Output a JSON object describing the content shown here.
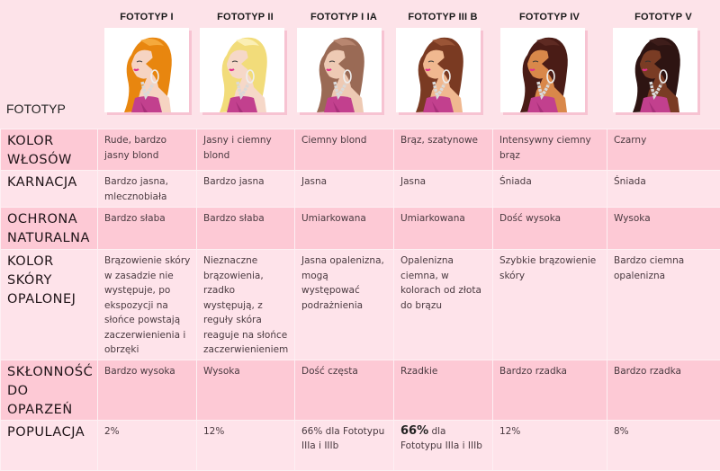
{
  "header": {
    "row_label": "FOTOTYP",
    "columns": [
      {
        "title": "FOTOTYP I",
        "hair_color": "#e8860f",
        "hair_hl": "#f5a93c",
        "skin_color": "#f6d4c2",
        "image": "woman-portrait-red-hair"
      },
      {
        "title": "FOTOTYP II",
        "hair_color": "#f2dc7a",
        "hair_hl": "#fbefb4",
        "skin_color": "#f6d8c8",
        "image": "woman-portrait-blonde-hair"
      },
      {
        "title": "FOTOTYP I IA",
        "hair_color": "#9a6a55",
        "hair_hl": "#b88670",
        "skin_color": "#eecab4",
        "image": "woman-portrait-dark-blonde-hair"
      },
      {
        "title": "FOTOTYP III B",
        "hair_color": "#7a3a22",
        "hair_hl": "#9a5436",
        "skin_color": "#f0b890",
        "image": "woman-portrait-brown-hair"
      },
      {
        "title": "FOTOTYP IV",
        "hair_color": "#4a1c16",
        "hair_hl": "#5e2a22",
        "skin_color": "#d9884a",
        "image": "woman-portrait-dark-brown-hair"
      },
      {
        "title": "FOTOTYP V",
        "hair_color": "#2e1412",
        "hair_hl": "#3e1d1a",
        "skin_color": "#7a3c24",
        "image": "woman-portrait-black-hair"
      }
    ]
  },
  "rows": [
    {
      "label": "KOLOR WŁOSÓW",
      "cells": [
        "Rude,  bardzo jasny blond",
        "Jasny i ciemny blond",
        "Ciemny blond",
        "Brąz, szatynowe",
        "Intensywny ciemny brąz",
        "Czarny"
      ]
    },
    {
      "label": "KARNACJA",
      "cells": [
        "Bardzo jasna, mlecznobiała",
        "Bardzo jasna",
        "Jasna",
        "Jasna",
        "Śniada",
        "Śniada"
      ]
    },
    {
      "label": "OCHRONA NATURALNA",
      "cells": [
        "Bardzo słaba",
        "Bardzo słaba",
        "Umiarkowana",
        "Umiarkowana",
        "Dość wysoka",
        "Wysoka"
      ]
    },
    {
      "label": "KOLOR SKÓRY OPALONEJ",
      "cells": [
        "Brązowienie skóry w zasadzie nie występuje, po ekspozycji na słońce powstają zaczerwienienia i obrzęki",
        "Nieznaczne brązowienia, rzadko występują, z reguły skóra reaguje na słońce zaczerwienieniem",
        "Jasna opalenizna, mogą występować podrażnienia",
        "Opalenizna ciemna, w kolorach od złota do brązu",
        "Szybkie brązowienie skóry",
        "Bardzo ciemna opalenizna"
      ]
    },
    {
      "label": "SKŁONNOŚĆ DO OPARZEŃ",
      "cells": [
        "Bardzo wysoka",
        "Wysoka",
        "Dość częsta",
        "Rzadkie",
        "Bardzo rzadka",
        "Bardzo rzadka"
      ]
    },
    {
      "label": "POPULACJA",
      "cells": [
        "2%",
        "12%",
        "66% dla Fototypu IIIa i IIIb",
        "dla Fototypu IIIa i IIIb",
        "12%",
        "8%"
      ],
      "bold_prefix_col4": "66%"
    }
  ],
  "colors": {
    "background": "#fde3e9",
    "row_dark": "#fdc9d5",
    "row_light": "#fee3ea",
    "dress": "#c2408e"
  }
}
